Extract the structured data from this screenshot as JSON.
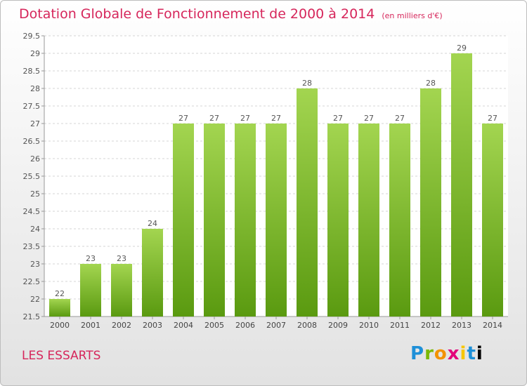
{
  "header": {
    "title": "Dotation Globale de Fonctionnement de 2000 à 2014",
    "unit": "(en milliers d'€)"
  },
  "footer": {
    "commune": "LES ESSARTS",
    "logo_letters": [
      "P",
      "r",
      "o",
      "x",
      "i",
      "t",
      "i"
    ]
  },
  "colors": {
    "title": "#d6265b",
    "bar_top": "#a3d550",
    "bar_bottom": "#5a9a10",
    "grid": "#d4d4d4"
  },
  "chart_data": {
    "type": "bar",
    "categories": [
      "2000",
      "2001",
      "2002",
      "2003",
      "2004",
      "2005",
      "2006",
      "2007",
      "2008",
      "2009",
      "2010",
      "2011",
      "2012",
      "2013",
      "2014"
    ],
    "values": [
      22,
      23,
      23,
      24,
      27,
      27,
      27,
      27,
      28,
      27,
      27,
      27,
      28,
      29,
      27
    ],
    "value_labels": [
      "22",
      "23",
      "23",
      "24",
      "27",
      "27",
      "27",
      "27",
      "28",
      "27",
      "27",
      "27",
      "28",
      "29",
      "27"
    ],
    "yticks": [
      "21.5",
      "22",
      "22.5",
      "23",
      "23.5",
      "24",
      "24.5",
      "25",
      "25.5",
      "26",
      "26.5",
      "27",
      "27.5",
      "28",
      "28.5",
      "29",
      "29.5"
    ],
    "ylim": [
      21.5,
      29.5
    ],
    "grid": true,
    "title": "Dotation Globale de Fonctionnement de 2000 à 2014",
    "xlabel": "",
    "ylabel": ""
  }
}
